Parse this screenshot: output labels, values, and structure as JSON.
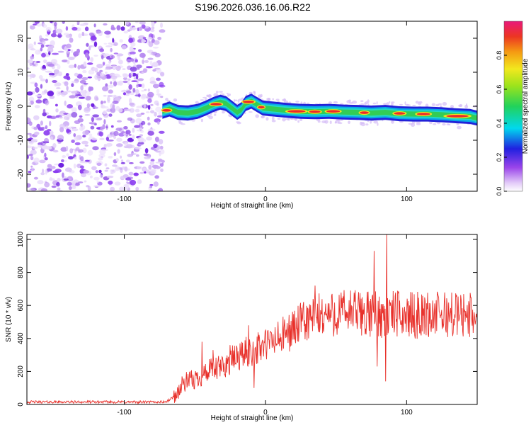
{
  "title": "S196.2026.036.16.06.R22",
  "colors": {
    "snr_line": "#e8302a",
    "scatter": "#8a3cf0",
    "axis": "#000000"
  },
  "chart_data": [
    {
      "type": "heatmap",
      "name": "spectrogram",
      "xlabel": "Height of straight line (km)",
      "ylabel": "Frequency (Hz)",
      "xlim": [
        -169,
        150
      ],
      "ylim": [
        -25,
        25
      ],
      "xticks": [
        -100,
        0,
        100
      ],
      "xtick_labels": [
        "-100",
        "0",
        "100"
      ],
      "yticks": [
        -20,
        -10,
        0,
        10,
        20
      ],
      "ytick_labels": [
        "-20",
        "-10",
        "0",
        "10",
        "20"
      ],
      "noise_region_x": [
        -169,
        -73
      ],
      "ridge": {
        "x": [
          -73,
          -68,
          -62,
          -55,
          -48,
          -42,
          -37,
          -32,
          -28,
          -24,
          -20,
          -17,
          -14,
          -10,
          -6,
          -2,
          5,
          15,
          25,
          35,
          45,
          55,
          65,
          75,
          85,
          95,
          105,
          115,
          125,
          135,
          145,
          150
        ],
        "freq": [
          -1.5,
          -0.8,
          -1.8,
          -2.0,
          -1.5,
          -0.5,
          0.5,
          1.2,
          0.8,
          -0.5,
          -1.8,
          -1.0,
          0.8,
          1.5,
          0.5,
          -0.5,
          -0.8,
          -1.2,
          -1.5,
          -1.6,
          -1.5,
          -1.7,
          -1.8,
          -2.0,
          -1.8,
          -2.2,
          -2.3,
          -2.3,
          -2.5,
          -2.8,
          -3.0,
          -3.5
        ]
      },
      "colorbar": {
        "label": "Normalized spectral amplitude",
        "range": [
          0,
          1
        ],
        "ticks": [
          0.0,
          0.2,
          0.4,
          0.6,
          0.8
        ],
        "tick_labels": [
          "0.0",
          "0.2",
          "0.4",
          "0.6",
          "0.8"
        ]
      }
    },
    {
      "type": "line",
      "name": "snr",
      "xlabel": "Height of straight line (km)",
      "ylabel": "SNR (10 * v/v)",
      "xlim": [
        -169,
        150
      ],
      "ylim": [
        0,
        1030
      ],
      "xticks": [
        -100,
        0,
        100
      ],
      "xtick_labels": [
        "-100",
        "0",
        "100"
      ],
      "yticks": [
        0,
        200,
        400,
        600,
        800,
        1000
      ],
      "ytick_labels": [
        "0",
        "200",
        "400",
        "600",
        "800",
        "1000"
      ],
      "series": [
        {
          "name": "SNR",
          "envelope_x": [
            -169,
            -140,
            -110,
            -80,
            -70,
            -63,
            -58,
            -50,
            -45,
            -40,
            -35,
            -30,
            -25,
            -20,
            -15,
            -10,
            -5,
            0,
            10,
            20,
            30,
            40,
            50,
            60,
            70,
            75,
            80,
            85,
            90,
            100,
            110,
            120,
            130,
            140,
            150
          ],
          "envelope_y": [
            15,
            15,
            15,
            14,
            16,
            60,
            130,
            150,
            180,
            200,
            210,
            230,
            260,
            290,
            310,
            320,
            340,
            360,
            400,
            460,
            510,
            540,
            550,
            560,
            550,
            540,
            560,
            520,
            550,
            540,
            540,
            545,
            545,
            545,
            540
          ],
          "peaks": [
            {
              "x": -45,
              "y": 380
            },
            {
              "x": -37,
              "y": 330
            },
            {
              "x": -25,
              "y": 360
            },
            {
              "x": -12,
              "y": 480
            },
            {
              "x": -8,
              "y": 100
            },
            {
              "x": 35,
              "y": 720
            },
            {
              "x": 77,
              "y": 930
            },
            {
              "x": 79,
              "y": 230
            },
            {
              "x": 86,
              "y": 1030
            },
            {
              "x": 85,
              "y": 140
            }
          ]
        }
      ]
    }
  ]
}
